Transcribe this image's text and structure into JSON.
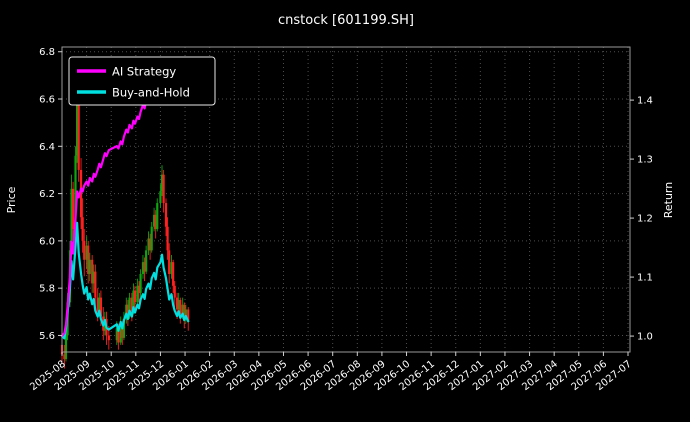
{
  "chart_data": {
    "type": "line",
    "subtype": "candlestick-with-return-lines",
    "title": "cnstock [601199.SH]",
    "ylabel_left": "Price",
    "ylabel_right": "Return",
    "grid": true,
    "legend_position": "upper-left",
    "background": "#000000",
    "text_color": "#ffffff",
    "x_tick_labels": [
      "2025-08",
      "2025-09",
      "2025-10",
      "2025-11",
      "2025-12",
      "2026-01",
      "2026-02",
      "2026-03",
      "2026-04",
      "2026-05",
      "2026-06",
      "2026-07",
      "2026-08",
      "2026-09",
      "2026-10",
      "2026-11",
      "2026-12",
      "2027-01",
      "2027-02",
      "2027-03",
      "2027-04",
      "2027-05",
      "2027-06",
      "2027-07"
    ],
    "left_ticks": [
      "5.6",
      "5.8",
      "6.0",
      "6.2",
      "6.4",
      "6.6",
      "6.8"
    ],
    "right_ticks": [
      "1.0",
      "1.1",
      "1.2",
      "1.3",
      "1.4"
    ],
    "left_range": [
      5.53,
      6.82
    ],
    "right_range": [
      0.973,
      1.49
    ],
    "series": [
      {
        "name": "AI Strategy",
        "color": "#ff00ff",
        "axis": "right",
        "dates": [
          "2025-08-01",
          "2025-08-04",
          "2025-08-06",
          "2025-08-08",
          "2025-08-11",
          "2025-08-13",
          "2025-08-15",
          "2025-08-18",
          "2025-08-20",
          "2025-08-22",
          "2025-08-25",
          "2025-08-27",
          "2025-08-29",
          "2025-09-01",
          "2025-09-03",
          "2025-09-05",
          "2025-09-08",
          "2025-09-10",
          "2025-09-12",
          "2025-09-15",
          "2025-09-17",
          "2025-09-19",
          "2025-09-22",
          "2025-09-24",
          "2025-09-26",
          "2025-09-29",
          "2025-10-08",
          "2025-10-10",
          "2025-10-13",
          "2025-10-15",
          "2025-10-17",
          "2025-10-20",
          "2025-10-22",
          "2025-10-24",
          "2025-10-27",
          "2025-10-29",
          "2025-10-31",
          "2025-11-03",
          "2025-11-05",
          "2025-11-07",
          "2025-11-10",
          "2025-11-12",
          "2025-11-14",
          "2025-11-17",
          "2025-11-19",
          "2025-11-21",
          "2025-11-24",
          "2025-11-26",
          "2025-11-28",
          "2025-12-01",
          "2025-12-03",
          "2025-12-05",
          "2025-12-08",
          "2025-12-10",
          "2025-12-12"
        ],
        "values": [
          1.0,
          1.005,
          1.02,
          1.05,
          1.1,
          1.16,
          1.14,
          1.2,
          1.245,
          1.235,
          1.25,
          1.245,
          1.255,
          1.262,
          1.255,
          1.268,
          1.262,
          1.275,
          1.27,
          1.282,
          1.292,
          1.286,
          1.3,
          1.31,
          1.305,
          1.315,
          1.322,
          1.318,
          1.33,
          1.325,
          1.338,
          1.35,
          1.345,
          1.358,
          1.352,
          1.365,
          1.36,
          1.372,
          1.368,
          1.38,
          1.392,
          1.386,
          1.4,
          1.412,
          1.405,
          1.42,
          1.432,
          1.425,
          1.44,
          1.452,
          1.468,
          1.44,
          1.465,
          1.445,
          1.455
        ]
      },
      {
        "name": "Buy-and-Hold",
        "color": "#00e0e0",
        "axis": "right",
        "dates": [
          "2025-08-01",
          "2025-08-04",
          "2025-08-06",
          "2025-08-08",
          "2025-08-11",
          "2025-08-13",
          "2025-08-15",
          "2025-08-18",
          "2025-08-20",
          "2025-08-22",
          "2025-08-25",
          "2025-08-27",
          "2025-08-29",
          "2025-09-01",
          "2025-09-03",
          "2025-09-05",
          "2025-09-08",
          "2025-09-10",
          "2025-09-12",
          "2025-09-15",
          "2025-09-17",
          "2025-09-19",
          "2025-09-22",
          "2025-09-24",
          "2025-09-26",
          "2025-09-29",
          "2025-10-08",
          "2025-10-10",
          "2025-10-13",
          "2025-10-15",
          "2025-10-17",
          "2025-10-20",
          "2025-10-22",
          "2025-10-24",
          "2025-10-27",
          "2025-10-29",
          "2025-10-31",
          "2025-11-03",
          "2025-11-05",
          "2025-11-07",
          "2025-11-10",
          "2025-11-12",
          "2025-11-14",
          "2025-11-17",
          "2025-11-19",
          "2025-11-21",
          "2025-11-24",
          "2025-11-26",
          "2025-11-28",
          "2025-12-01",
          "2025-12-03",
          "2025-12-05",
          "2025-12-08",
          "2025-12-10",
          "2025-12-12",
          "2025-12-15",
          "2025-12-17",
          "2025-12-19",
          "2025-12-22",
          "2025-12-24",
          "2025-12-26",
          "2025-12-29",
          "2025-12-31",
          "2026-01-02",
          "2026-01-05"
        ],
        "values": [
          1.0,
          0.996,
          1.014,
          1.04,
          1.08,
          1.127,
          1.096,
          1.152,
          1.192,
          1.141,
          1.105,
          1.087,
          1.072,
          1.083,
          1.062,
          1.072,
          1.054,
          1.063,
          1.043,
          1.033,
          1.043,
          1.029,
          1.018,
          1.027,
          1.014,
          1.011,
          1.02,
          1.009,
          1.024,
          1.013,
          1.027,
          1.038,
          1.029,
          1.043,
          1.033,
          1.049,
          1.04,
          1.053,
          1.047,
          1.062,
          1.071,
          1.063,
          1.08,
          1.089,
          1.08,
          1.098,
          1.107,
          1.096,
          1.116,
          1.125,
          1.138,
          1.116,
          1.098,
          1.08,
          1.062,
          1.071,
          1.053,
          1.043,
          1.034,
          1.042,
          1.031,
          1.038,
          1.027,
          1.034,
          1.025
        ]
      }
    ],
    "candlestick": {
      "axis": "left",
      "up_color": "#0fa50f",
      "down_color": "#ff2020",
      "dates": [
        "2025-08-01",
        "2025-08-04",
        "2025-08-06",
        "2025-08-08",
        "2025-08-11",
        "2025-08-13",
        "2025-08-15",
        "2025-08-18",
        "2025-08-20",
        "2025-08-22",
        "2025-08-25",
        "2025-08-27",
        "2025-08-29",
        "2025-09-01",
        "2025-09-03",
        "2025-09-05",
        "2025-09-08",
        "2025-09-10",
        "2025-09-12",
        "2025-09-15",
        "2025-09-17",
        "2025-09-19",
        "2025-09-22",
        "2025-09-24",
        "2025-09-26",
        "2025-09-29",
        "2025-10-08",
        "2025-10-10",
        "2025-10-13",
        "2025-10-15",
        "2025-10-17",
        "2025-10-20",
        "2025-10-22",
        "2025-10-24",
        "2025-10-27",
        "2025-10-29",
        "2025-10-31",
        "2025-11-03",
        "2025-11-05",
        "2025-11-07",
        "2025-11-10",
        "2025-11-12",
        "2025-11-14",
        "2025-11-17",
        "2025-11-19",
        "2025-11-21",
        "2025-11-24",
        "2025-11-26",
        "2025-11-28",
        "2025-12-01",
        "2025-12-03",
        "2025-12-05",
        "2025-12-08",
        "2025-12-10",
        "2025-12-12",
        "2025-12-15",
        "2025-12-17",
        "2025-12-19",
        "2025-12-22",
        "2025-12-24",
        "2025-12-26",
        "2025-12-29",
        "2025-12-31",
        "2026-01-02",
        "2026-01-05"
      ],
      "open": [
        5.56,
        5.52,
        5.5,
        5.6,
        5.74,
        5.96,
        6.22,
        6.05,
        6.36,
        6.58,
        6.3,
        6.1,
        6.0,
        5.92,
        5.98,
        5.86,
        5.92,
        5.82,
        5.87,
        5.76,
        5.7,
        5.76,
        5.68,
        5.62,
        5.67,
        5.6,
        5.58,
        5.63,
        5.57,
        5.65,
        5.59,
        5.67,
        5.73,
        5.68,
        5.76,
        5.7,
        5.79,
        5.74,
        5.81,
        5.78,
        5.86,
        5.91,
        5.87,
        5.96,
        6.01,
        5.96,
        6.06,
        6.11,
        6.05,
        6.16,
        6.21,
        6.28,
        6.16,
        6.06,
        5.96,
        5.86,
        5.91,
        5.81,
        5.76,
        5.71,
        5.75,
        5.69,
        5.73,
        5.67,
        5.71
      ],
      "high": [
        5.6,
        5.56,
        5.62,
        5.78,
        6.0,
        6.28,
        6.25,
        6.4,
        6.7,
        6.62,
        6.35,
        6.18,
        6.05,
        6.02,
        6.0,
        5.95,
        5.94,
        5.9,
        5.9,
        5.8,
        5.78,
        5.79,
        5.72,
        5.7,
        5.7,
        5.64,
        5.66,
        5.65,
        5.68,
        5.66,
        5.7,
        5.76,
        5.75,
        5.78,
        5.78,
        5.82,
        5.81,
        5.84,
        5.83,
        5.88,
        5.94,
        5.93,
        5.98,
        6.04,
        6.03,
        6.08,
        6.14,
        6.13,
        6.18,
        6.24,
        6.32,
        6.3,
        6.18,
        6.1,
        5.99,
        5.94,
        5.92,
        5.83,
        5.78,
        5.78,
        5.76,
        5.76,
        5.74,
        5.73,
        5.72
      ],
      "low": [
        5.48,
        5.46,
        5.49,
        5.58,
        5.72,
        5.94,
        6.0,
        6.03,
        6.33,
        6.25,
        6.05,
        5.95,
        5.85,
        5.88,
        5.82,
        5.83,
        5.78,
        5.78,
        5.72,
        5.66,
        5.68,
        5.64,
        5.58,
        5.6,
        5.56,
        5.54,
        5.56,
        5.54,
        5.56,
        5.56,
        5.58,
        5.65,
        5.64,
        5.67,
        5.66,
        5.69,
        5.7,
        5.72,
        5.74,
        5.76,
        5.84,
        5.83,
        5.86,
        5.94,
        5.92,
        5.95,
        6.04,
        6.01,
        6.04,
        6.14,
        6.19,
        6.12,
        6.02,
        5.92,
        5.82,
        5.84,
        5.78,
        5.72,
        5.67,
        5.69,
        5.65,
        5.67,
        5.63,
        5.65,
        5.62
      ],
      "close": [
        5.52,
        5.5,
        5.6,
        5.74,
        5.96,
        6.22,
        6.05,
        6.36,
        6.58,
        6.3,
        6.1,
        6.0,
        5.92,
        5.98,
        5.86,
        5.92,
        5.82,
        5.87,
        5.76,
        5.7,
        5.76,
        5.68,
        5.62,
        5.67,
        5.6,
        5.58,
        5.63,
        5.57,
        5.65,
        5.59,
        5.67,
        5.73,
        5.68,
        5.76,
        5.7,
        5.79,
        5.74,
        5.81,
        5.78,
        5.86,
        5.91,
        5.87,
        5.96,
        6.01,
        5.96,
        6.06,
        6.11,
        6.05,
        6.16,
        6.21,
        6.28,
        6.16,
        6.06,
        5.96,
        5.86,
        5.91,
        5.81,
        5.76,
        5.71,
        5.75,
        5.69,
        5.73,
        5.67,
        5.71,
        5.66
      ]
    }
  }
}
